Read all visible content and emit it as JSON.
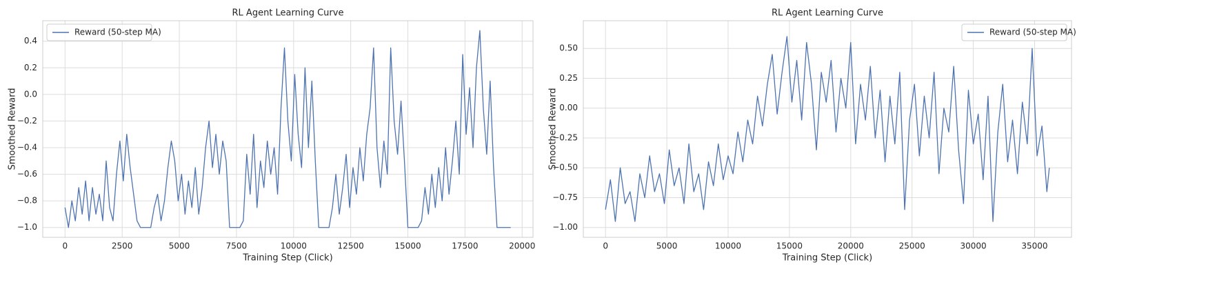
{
  "chart_data": [
    {
      "type": "line",
      "title": "RL Agent Learning Curve",
      "xlabel": "Training Step (Click)",
      "ylabel": "Smoothed Reward",
      "legend_loc": "upper left",
      "grid": true,
      "xlim": [
        -975,
        20475
      ],
      "xticks": [
        0,
        2500,
        5000,
        7500,
        10000,
        12500,
        15000,
        17500,
        20000
      ],
      "ylim": [
        -1.074,
        0.554
      ],
      "yticks": [
        {
          "value": -1.0,
          "label": "−1.0"
        },
        {
          "value": -0.8,
          "label": "−0.8"
        },
        {
          "value": -0.6,
          "label": "−0.6"
        },
        {
          "value": -0.4,
          "label": "−0.4"
        },
        {
          "value": -0.2,
          "label": "−0.2"
        },
        {
          "value": 0.0,
          "label": "0.0"
        },
        0.2,
        0.4
      ],
      "x": [
        0,
        150,
        300,
        450,
        600,
        750,
        900,
        1050,
        1200,
        1350,
        1500,
        1650,
        1800,
        1950,
        2100,
        2250,
        2400,
        2550,
        2700,
        2850,
        3000,
        3150,
        3300,
        3450,
        3600,
        3750,
        3900,
        4050,
        4200,
        4350,
        4500,
        4650,
        4800,
        4950,
        5100,
        5250,
        5400,
        5550,
        5700,
        5850,
        6000,
        6150,
        6300,
        6450,
        6600,
        6750,
        6900,
        7050,
        7200,
        7350,
        7500,
        7650,
        7800,
        7950,
        8100,
        8250,
        8400,
        8550,
        8700,
        8850,
        9000,
        9150,
        9300,
        9450,
        9600,
        9750,
        9900,
        10050,
        10200,
        10350,
        10500,
        10650,
        10800,
        10950,
        11100,
        11250,
        11400,
        11550,
        11700,
        11850,
        12000,
        12150,
        12300,
        12450,
        12600,
        12750,
        12900,
        13050,
        13200,
        13350,
        13500,
        13650,
        13800,
        13950,
        14100,
        14250,
        14400,
        14550,
        14700,
        14850,
        15000,
        15150,
        15300,
        15450,
        15600,
        15750,
        15900,
        16050,
        16200,
        16350,
        16500,
        16650,
        16800,
        16950,
        17100,
        17250,
        17400,
        17550,
        17700,
        17850,
        18000,
        18150,
        18300,
        18450,
        18600,
        18750,
        18900,
        19050,
        19200,
        19350,
        19500
      ],
      "series": [
        {
          "name": "Reward (50-step MA)",
          "color": "#4c72b0",
          "values": [
            -0.85,
            -1,
            -0.8,
            -0.95,
            -0.7,
            -0.9,
            -0.65,
            -0.95,
            -0.7,
            -0.9,
            -0.75,
            -0.95,
            -0.5,
            -0.85,
            -0.95,
            -0.6,
            -0.35,
            -0.65,
            -0.3,
            -0.55,
            -0.75,
            -0.95,
            -1,
            -1,
            -1,
            -1,
            -0.85,
            -0.75,
            -0.95,
            -0.8,
            -0.55,
            -0.35,
            -0.5,
            -0.8,
            -0.6,
            -0.9,
            -0.65,
            -0.85,
            -0.55,
            -0.9,
            -0.7,
            -0.4,
            -0.2,
            -0.55,
            -0.3,
            -0.6,
            -0.35,
            -0.5,
            -1,
            -1,
            -1,
            -1,
            -0.95,
            -0.45,
            -0.75,
            -0.3,
            -0.85,
            -0.5,
            -0.7,
            -0.35,
            -0.6,
            -0.4,
            -0.75,
            -0.1,
            0.35,
            -0.2,
            -0.5,
            0.15,
            -0.3,
            -0.55,
            0.2,
            -0.4,
            0.1,
            -0.5,
            -1,
            -1,
            -1,
            -1,
            -0.85,
            -0.6,
            -0.9,
            -0.7,
            -0.45,
            -0.85,
            -0.55,
            -0.75,
            -0.4,
            -0.65,
            -0.3,
            -0.1,
            0.35,
            -0.4,
            -0.7,
            -0.35,
            -0.6,
            0.35,
            -0.2,
            -0.45,
            -0.05,
            -0.5,
            -1,
            -1,
            -1,
            -1,
            -0.95,
            -0.7,
            -0.9,
            -0.6,
            -0.85,
            -0.55,
            -0.8,
            -0.4,
            -0.75,
            -0.5,
            -0.2,
            -0.6,
            0.3,
            -0.3,
            0.05,
            -0.4,
            0.2,
            0.48,
            -0.1,
            -0.45,
            0.1,
            -0.55,
            -1,
            -1,
            -1,
            -1,
            -1
          ]
        }
      ]
    },
    {
      "type": "line",
      "title": "RL Agent Learning Curve",
      "xlabel": "Training Step (Click)",
      "ylabel": "Smoothed Reward",
      "legend_loc": "upper right",
      "grid": true,
      "xlim": [
        -1810,
        38010
      ],
      "xticks": [
        0,
        5000,
        10000,
        15000,
        20000,
        25000,
        30000,
        35000
      ],
      "ylim": [
        -1.0825,
        0.7325
      ],
      "yticks": [
        {
          "value": -1.0,
          "label": "−1.00"
        },
        {
          "value": -0.75,
          "label": "−0.75"
        },
        {
          "value": -0.5,
          "label": "−0.50"
        },
        {
          "value": -0.25,
          "label": "−0.25"
        },
        {
          "value": 0.0,
          "label": "0.00"
        },
        0.25,
        {
          "value": 0.5,
          "label": "0.50"
        }
      ],
      "x": [
        0,
        400,
        800,
        1200,
        1600,
        2000,
        2400,
        2800,
        3200,
        3600,
        4000,
        4400,
        4800,
        5200,
        5600,
        6000,
        6400,
        6800,
        7200,
        7600,
        8000,
        8400,
        8800,
        9200,
        9600,
        10000,
        10400,
        10800,
        11200,
        11600,
        12000,
        12400,
        12800,
        13200,
        13600,
        14000,
        14400,
        14800,
        15200,
        15600,
        16000,
        16400,
        16800,
        17200,
        17600,
        18000,
        18400,
        18800,
        19200,
        19600,
        20000,
        20400,
        20800,
        21200,
        21600,
        22000,
        22400,
        22800,
        23200,
        23600,
        24000,
        24400,
        24800,
        25200,
        25600,
        26000,
        26400,
        26800,
        27200,
        27600,
        28000,
        28400,
        28800,
        29200,
        29600,
        30000,
        30400,
        30800,
        31200,
        31600,
        32000,
        32400,
        32800,
        33200,
        33600,
        34000,
        34400,
        34800,
        35200,
        35600,
        36000,
        36200
      ],
      "series": [
        {
          "name": "Reward (50-step MA)",
          "color": "#4c72b0",
          "values": [
            -0.85,
            -0.6,
            -0.95,
            -0.5,
            -0.8,
            -0.7,
            -0.95,
            -0.55,
            -0.75,
            -0.4,
            -0.7,
            -0.55,
            -0.8,
            -0.35,
            -0.65,
            -0.5,
            -0.8,
            -0.3,
            -0.7,
            -0.55,
            -0.85,
            -0.45,
            -0.65,
            -0.3,
            -0.6,
            -0.4,
            -0.55,
            -0.2,
            -0.45,
            -0.1,
            -0.3,
            0.1,
            -0.15,
            0.2,
            0.45,
            -0.05,
            0.3,
            0.6,
            0.05,
            0.4,
            -0.1,
            0.55,
            0.2,
            -0.35,
            0.3,
            0.05,
            0.4,
            -0.2,
            0.25,
            0.0,
            0.55,
            -0.3,
            0.2,
            -0.1,
            0.35,
            -0.25,
            0.15,
            -0.45,
            0.1,
            -0.3,
            0.3,
            -0.85,
            -0.1,
            0.2,
            -0.4,
            0.1,
            -0.25,
            0.3,
            -0.55,
            0.0,
            -0.2,
            0.35,
            -0.35,
            -0.8,
            0.15,
            -0.3,
            -0.05,
            -0.6,
            0.1,
            -0.95,
            -0.2,
            0.2,
            -0.45,
            -0.1,
            -0.55,
            0.05,
            -0.3,
            0.5,
            -0.4,
            -0.15,
            -0.7,
            -0.5
          ]
        }
      ]
    }
  ]
}
